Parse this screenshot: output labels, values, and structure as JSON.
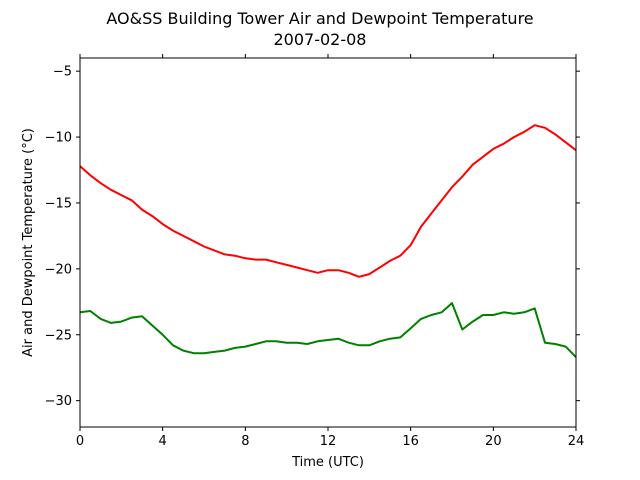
{
  "chart_data": {
    "type": "line",
    "title": "AO&SS Building Tower Air and Dewpoint Temperature",
    "subtitle": "2007-02-08",
    "xlabel": "Time (UTC)",
    "ylabel": "Air and Dewpoint Temperature (°C)",
    "xlim": [
      0,
      24
    ],
    "ylim": [
      -32,
      -4
    ],
    "xticks": [
      0,
      4,
      8,
      12,
      16,
      20,
      24
    ],
    "yticks": [
      -30,
      -25,
      -20,
      -15,
      -10,
      -5
    ],
    "grid": false,
    "series": [
      {
        "color": "#ff0000",
        "x": [
          0,
          0.5,
          1,
          1.5,
          2,
          2.5,
          3,
          3.5,
          4,
          4.5,
          5,
          5.5,
          6,
          6.5,
          7,
          7.5,
          8,
          8.5,
          9,
          9.5,
          10,
          10.5,
          11,
          11.5,
          12,
          12.5,
          13,
          13.5,
          14,
          14.5,
          15,
          15.5,
          16,
          16.5,
          17,
          17.5,
          18,
          18.5,
          19,
          19.5,
          20,
          20.5,
          21,
          21.5,
          22,
          22.5,
          23,
          23.5,
          24
        ],
        "y": [
          -12.2,
          -12.9,
          -13.5,
          -14.0,
          -14.4,
          -14.8,
          -15.5,
          -16.0,
          -16.6,
          -17.1,
          -17.5,
          -17.9,
          -18.3,
          -18.6,
          -18.9,
          -19.0,
          -19.2,
          -19.3,
          -19.3,
          -19.5,
          -19.7,
          -19.9,
          -20.1,
          -20.3,
          -20.1,
          -20.1,
          -20.3,
          -20.6,
          -20.4,
          -19.9,
          -19.4,
          -19.0,
          -18.2,
          -16.8,
          -15.8,
          -14.8,
          -13.8,
          -13.0,
          -12.1,
          -11.5,
          -10.9,
          -10.5,
          -10.0,
          -9.6,
          -9.1,
          -9.3,
          -9.8,
          -10.4,
          -11.0
        ]
      },
      {
        "color": "#008000",
        "x": [
          0,
          0.5,
          1,
          1.5,
          2,
          2.5,
          3,
          3.5,
          4,
          4.5,
          5,
          5.5,
          6,
          6.5,
          7,
          7.5,
          8,
          8.5,
          9,
          9.5,
          10,
          10.5,
          11,
          11.5,
          12,
          12.5,
          13,
          13.5,
          14,
          14.5,
          15,
          15.5,
          16,
          16.5,
          17,
          17.5,
          18,
          18.5,
          19,
          19.5,
          20,
          20.5,
          21,
          21.5,
          22,
          22.5,
          23,
          23.5,
          24
        ],
        "y": [
          -23.3,
          -23.2,
          -23.8,
          -24.1,
          -24.0,
          -23.7,
          -23.6,
          -24.3,
          -25.0,
          -25.8,
          -26.2,
          -26.4,
          -26.4,
          -26.3,
          -26.2,
          -26.0,
          -25.9,
          -25.7,
          -25.5,
          -25.5,
          -25.6,
          -25.6,
          -25.7,
          -25.5,
          -25.4,
          -25.3,
          -25.6,
          -25.8,
          -25.8,
          -25.5,
          -25.3,
          -25.2,
          -24.5,
          -23.8,
          -23.5,
          -23.3,
          -22.6,
          -24.6,
          -24.0,
          -23.5,
          -23.5,
          -23.3,
          -23.4,
          -23.3,
          -23.0,
          -25.6,
          -25.7,
          -25.9,
          -26.7
        ]
      }
    ]
  }
}
